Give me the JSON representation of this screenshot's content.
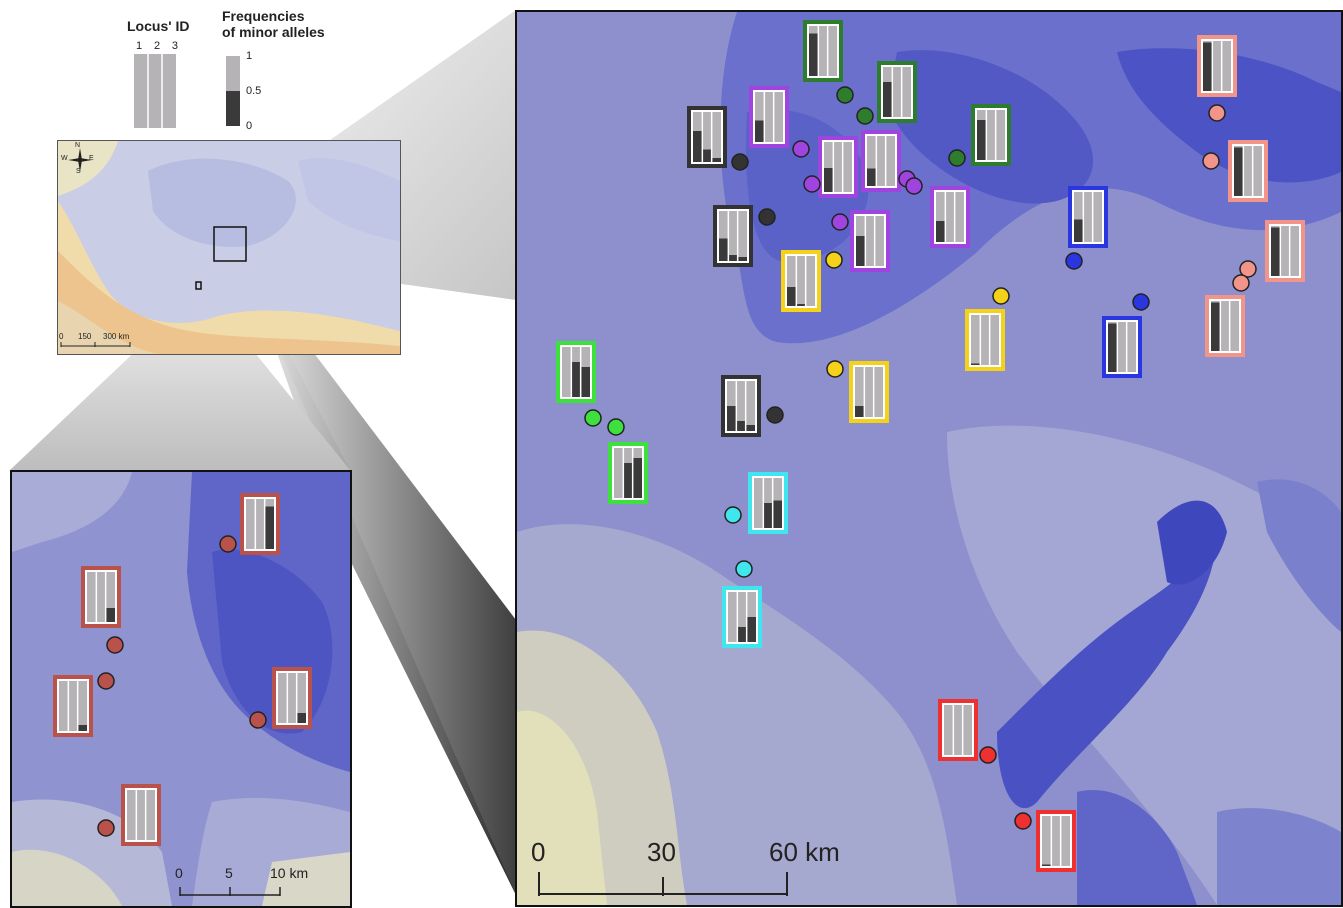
{
  "legend": {
    "locus_title": "Locus' ID",
    "locus_ids": [
      "1",
      "2",
      "3"
    ],
    "freq_title_line1": "Frequencies",
    "freq_title_line2": "of minor alleles",
    "freq_ticks": [
      "1",
      "0.5",
      "0"
    ]
  },
  "overview": {
    "compass": {
      "n": "N",
      "s": "S",
      "e": "E",
      "w": "W"
    },
    "scale": [
      "0",
      "150",
      "300 km"
    ]
  },
  "main_scale": [
    "0",
    "30",
    "60 km"
  ],
  "inset_scale": [
    "0",
    "5",
    "10 km"
  ],
  "colors": {
    "black": "#333333",
    "darkgreen": "#2e7d2e",
    "purple": "#a044e0",
    "blue": "#2a36e0",
    "salmon": "#f1958a",
    "yellow": "#f5d21a",
    "green": "#3ee03e",
    "cyan": "#3fe6ee",
    "red": "#ee3030",
    "brown": "#b9524a"
  },
  "main_sites": [
    {
      "group": "black",
      "freqs": [
        0.62,
        0.25,
        0.08
      ]
    },
    {
      "group": "black",
      "freqs": [
        0.45,
        0.12,
        0.08
      ]
    },
    {
      "group": "black",
      "freqs": [
        0.5,
        0.2,
        0.12
      ]
    },
    {
      "group": "darkgreen",
      "freqs": [
        0.85,
        0.0,
        0.0
      ]
    },
    {
      "group": "darkgreen",
      "freqs": [
        0.7,
        0.0,
        0.0
      ]
    },
    {
      "group": "darkgreen",
      "freqs": [
        0.8,
        0.0,
        0.0
      ]
    },
    {
      "group": "purple",
      "freqs": [
        0.43,
        0.0,
        0.0
      ]
    },
    {
      "group": "purple",
      "freqs": [
        0.48,
        0.0,
        0.0
      ]
    },
    {
      "group": "purple",
      "freqs": [
        0.35,
        0.0,
        0.0
      ]
    },
    {
      "group": "purple",
      "freqs": [
        0.42,
        0.0,
        0.0
      ]
    },
    {
      "group": "purple",
      "freqs": [
        0.6,
        0.0,
        0.0
      ]
    },
    {
      "group": "blue",
      "freqs": [
        0.45,
        0.0,
        0.0
      ]
    },
    {
      "group": "blue",
      "freqs": [
        0.97,
        0.0,
        0.0
      ]
    },
    {
      "group": "salmon",
      "freqs": [
        0.97,
        0.0,
        0.0
      ]
    },
    {
      "group": "salmon",
      "freqs": [
        0.97,
        0.0,
        0.0
      ]
    },
    {
      "group": "salmon",
      "freqs": [
        0.97,
        0.0,
        0.0
      ]
    },
    {
      "group": "salmon",
      "freqs": [
        0.97,
        0.0,
        0.0
      ]
    },
    {
      "group": "yellow",
      "freqs": [
        0.38,
        0.04,
        0.0
      ]
    },
    {
      "group": "yellow",
      "freqs": [
        0.03,
        0.0,
        0.0
      ]
    },
    {
      "group": "yellow",
      "freqs": [
        0.22,
        0.0,
        0.0
      ]
    },
    {
      "group": "green",
      "freqs": [
        0.0,
        0.7,
        0.6
      ]
    },
    {
      "group": "green",
      "freqs": [
        0.0,
        0.7,
        0.8
      ]
    },
    {
      "group": "cyan",
      "freqs": [
        0.0,
        0.5,
        0.55
      ]
    },
    {
      "group": "cyan",
      "freqs": [
        0.0,
        0.3,
        0.5
      ]
    },
    {
      "group": "red",
      "freqs": [
        0.0,
        0.0,
        0.0
      ]
    },
    {
      "group": "red",
      "freqs": [
        0.03,
        0.0,
        0.0
      ]
    }
  ],
  "inset_sites": [
    {
      "group": "brown",
      "freqs": [
        0.0,
        0.0,
        0.85
      ]
    },
    {
      "group": "brown",
      "freqs": [
        0.0,
        0.0,
        0.28
      ]
    },
    {
      "group": "brown",
      "freqs": [
        0.0,
        0.0,
        0.12
      ]
    },
    {
      "group": "brown",
      "freqs": [
        0.0,
        0.0,
        0.2
      ]
    },
    {
      "group": "brown",
      "freqs": [
        0.0,
        0.0,
        0.0
      ]
    }
  ]
}
